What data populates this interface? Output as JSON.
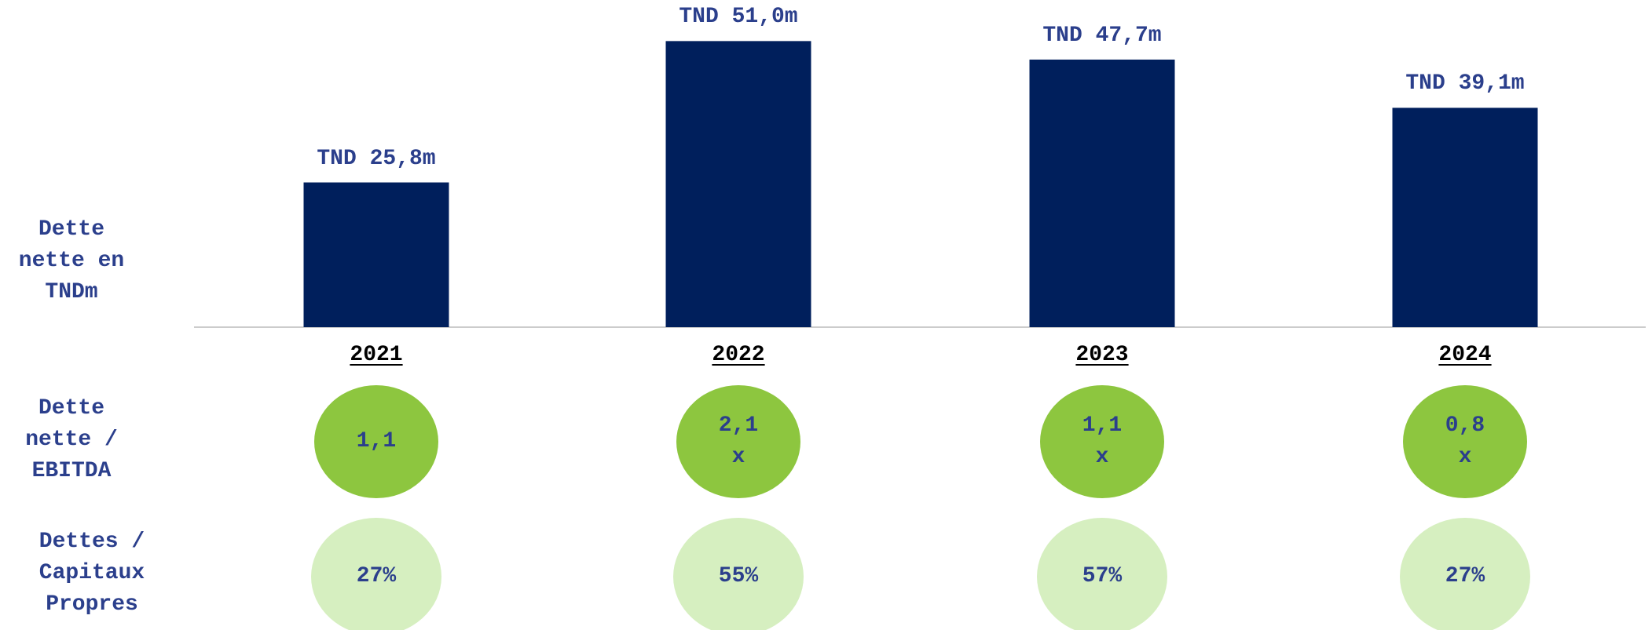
{
  "chart_data": {
    "type": "bar",
    "y_label": "Dette nette en TNDm",
    "categories": [
      "2021",
      "2022",
      "2023",
      "2024"
    ],
    "values": [
      25.8,
      51.0,
      47.7,
      39.1
    ],
    "value_labels": [
      "TND 25,8m",
      "TND 51,0m",
      "TND 47,7m",
      "TND 39,1m"
    ],
    "color": "#001f5c"
  },
  "rows": [
    {
      "label": "Dette nette / EBITDA",
      "values": [
        1.1,
        2.1,
        1.1,
        0.8
      ],
      "value_labels": [
        "1,1",
        "2,1 x",
        "1,1 x",
        "0,8 x"
      ],
      "color": "#8dc63f"
    },
    {
      "label": "Dettes / Capitaux Propres",
      "values": [
        27,
        55,
        57,
        27
      ],
      "value_labels": [
        "27%",
        "55%",
        "57%",
        "27%"
      ],
      "color": "#d6efc0"
    }
  ]
}
